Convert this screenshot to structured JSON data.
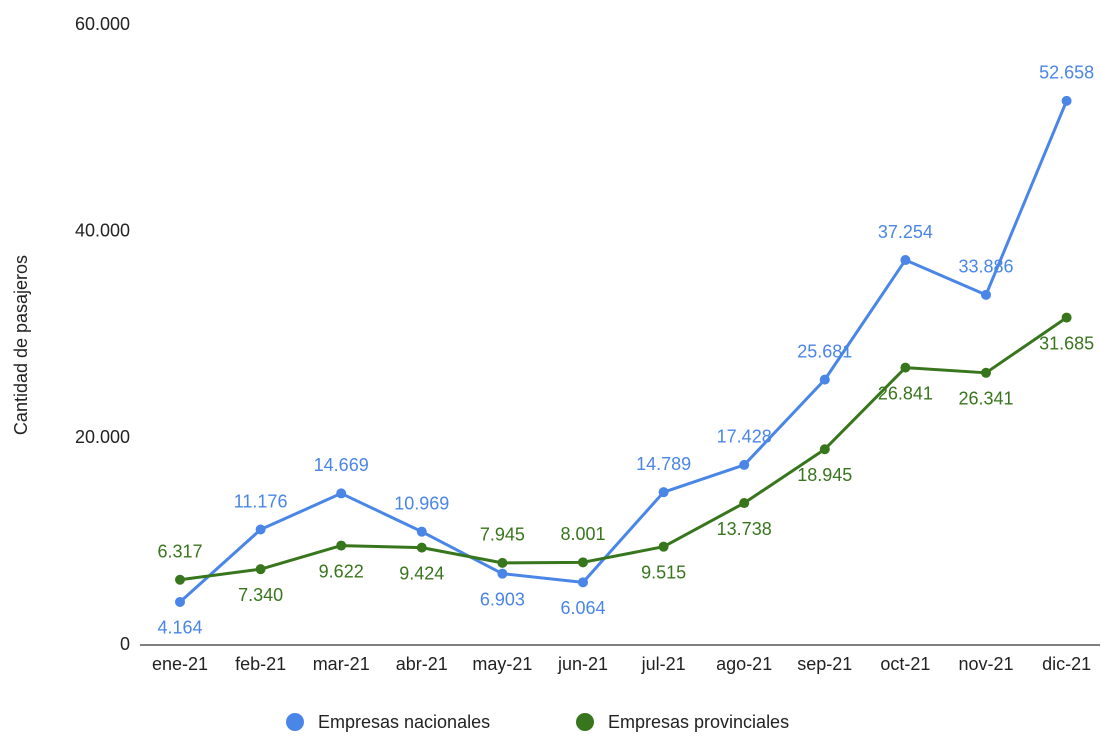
{
  "chart_data": {
    "type": "line",
    "y_label": "Cantidad de pasajeros",
    "categories": [
      "ene-21",
      "feb-21",
      "mar-21",
      "abr-21",
      "may-21",
      "jun-21",
      "jul-21",
      "ago-21",
      "sep-21",
      "oct-21",
      "nov-21",
      "dic-21"
    ],
    "series": [
      {
        "name": "Empresas nacionales",
        "color": "#4a86e8",
        "values": [
          4164,
          11176,
          14669,
          10969,
          6903,
          6064,
          14789,
          17428,
          25681,
          37254,
          33886,
          52658
        ],
        "value_labels": [
          "4.164",
          "11.176",
          "14.669",
          "10.969",
          "6.903",
          "6.064",
          "14.789",
          "17.428",
          "25.681",
          "37.254",
          "33.886",
          "52.658"
        ]
      },
      {
        "name": "Empresas provinciales",
        "color": "#38761d",
        "values": [
          6317,
          7340,
          9622,
          9424,
          7945,
          8001,
          9515,
          13738,
          18945,
          26841,
          26341,
          31685
        ],
        "value_labels": [
          "6.317",
          "7.340",
          "9.622",
          "9.424",
          "7.945",
          "8.001",
          "9.515",
          "13.738",
          "18.945",
          "26.841",
          "26.341",
          "31.685"
        ]
      }
    ],
    "ylim": [
      0,
      60000
    ],
    "yticks": [
      0,
      {
        "value": 20000,
        "label": "20.000"
      },
      {
        "value": 40000,
        "label": "40.000"
      },
      {
        "value": 60000,
        "label": "60.000"
      }
    ],
    "grid": false,
    "legend": "bottom"
  }
}
